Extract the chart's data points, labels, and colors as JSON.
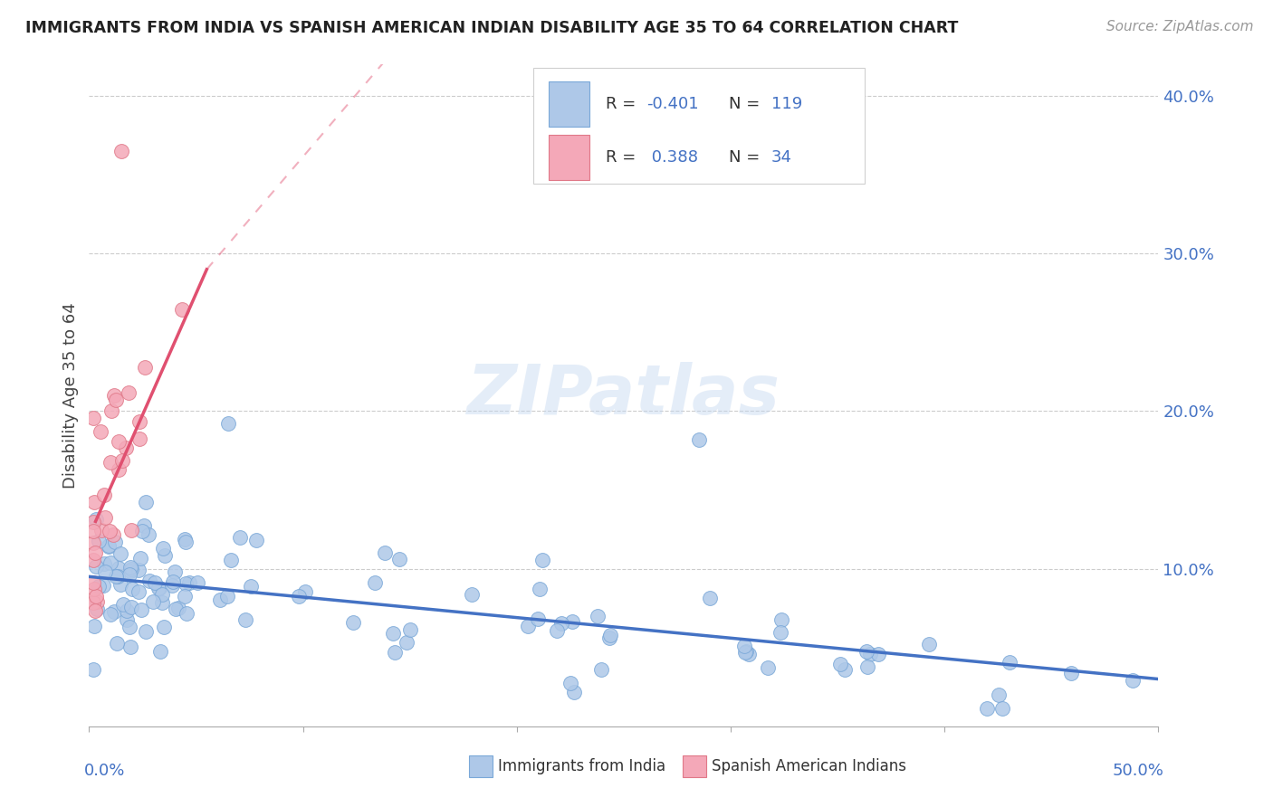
{
  "title": "IMMIGRANTS FROM INDIA VS SPANISH AMERICAN INDIAN DISABILITY AGE 35 TO 64 CORRELATION CHART",
  "source": "Source: ZipAtlas.com",
  "ylabel": "Disability Age 35 to 64",
  "xlim": [
    0.0,
    50.0
  ],
  "ylim": [
    0.0,
    42.0
  ],
  "yticks": [
    10.0,
    20.0,
    30.0,
    40.0
  ],
  "ytick_labels": [
    "10.0%",
    "20.0%",
    "30.0%",
    "40.0%"
  ],
  "watermark": "ZIPatlas",
  "blue_color": "#aec8e8",
  "blue_edge": "#7aa8d8",
  "pink_color": "#f4a8b8",
  "pink_edge": "#e07888",
  "blue_line_color": "#4472c4",
  "pink_line_color": "#e05070",
  "grid_color": "#cccccc",
  "title_color": "#222222",
  "axis_label_color": "#4472c4",
  "legend_text_color": "#333333",
  "legend_value_color": "#4472c4",
  "blue_trend_x0": 0.0,
  "blue_trend_y0": 9.5,
  "blue_trend_x1": 50.0,
  "blue_trend_y1": 3.0,
  "pink_solid_x0": 0.3,
  "pink_solid_y0": 13.0,
  "pink_solid_x1": 5.5,
  "pink_solid_y1": 29.0,
  "pink_dash_x0": 5.5,
  "pink_dash_y0": 29.0,
  "pink_dash_x1": 14.0,
  "pink_dash_y1": 42.5
}
